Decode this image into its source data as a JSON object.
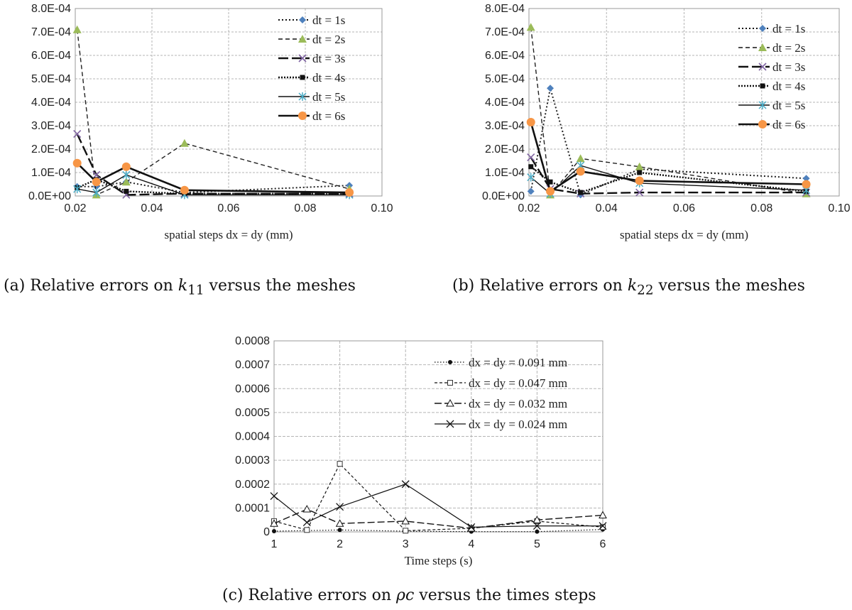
{
  "captions": {
    "a": {
      "prefix": "(a)  Relative errors on ",
      "symbol": "k",
      "sub": "11",
      "suffix": " versus the meshes"
    },
    "b": {
      "prefix": "(b)  Relative errors on ",
      "symbol": "k",
      "sub": "22",
      "suffix": " versus the meshes"
    },
    "c": {
      "prefix": "(c)  Relative errors on ",
      "symbol": "ρc",
      "sub": "",
      "suffix": " versus the times steps"
    }
  },
  "chart_data": [
    {
      "type": "line",
      "xlabel": "spatial steps dx = dy (mm)",
      "ylabel": "",
      "xlim": [
        0.02,
        0.1
      ],
      "ylim": [
        0,
        0.0008
      ],
      "x_ticks": [
        0.02,
        0.04,
        0.06,
        0.08,
        0.1
      ],
      "x_tick_labels": [
        "0.02",
        "0.04",
        "0.06",
        "0.08",
        "0.10"
      ],
      "y_ticks": [
        0,
        0.0001,
        0.0002,
        0.0003,
        0.0004,
        0.0005,
        0.0006,
        0.0007,
        0.0008
      ],
      "y_tick_labels": [
        "0.0E+00",
        "1.0E-04",
        "2.0E-04",
        "3.0E-04",
        "4.0E-04",
        "5.0E-04",
        "6.0E-04",
        "7.0E-04",
        "8.0E-04"
      ],
      "grid": true,
      "legend": "top-right",
      "x": [
        0.0205,
        0.0255,
        0.0333,
        0.0485,
        0.0915
      ],
      "series": [
        {
          "name": "dt = 1s",
          "values": [
            4e-05,
            4e-05,
            6e-05,
            1.5e-05,
            4.5e-05
          ],
          "color": "#4f81bd",
          "marker": "diamond",
          "dash": "2,3",
          "width": 2
        },
        {
          "name": "dt = 2s",
          "values": [
            0.00071,
            5e-06,
            6e-05,
            0.000225,
            3e-05
          ],
          "color": "#9bbb59",
          "marker": "triangle",
          "dash": "6,4",
          "width": 1.4
        },
        {
          "name": "dt = 3s",
          "values": [
            0.000265,
            9e-05,
            5e-06,
            1e-05,
            1e-05
          ],
          "color": "#8064a2",
          "marker": "cross",
          "dash": "14,5",
          "width": 2.4
        },
        {
          "name": "dt = 4s",
          "values": [
            3.5e-05,
            7e-05,
            2e-05,
            1e-05,
            1e-05
          ],
          "color": "#111111",
          "marker": "circle",
          "dash": "2,2",
          "width": 2.4
        },
        {
          "name": "dt = 5s",
          "values": [
            3e-05,
            1.5e-05,
            9e-05,
            5e-06,
            5e-06
          ],
          "color": "#4bacc6",
          "marker": "star",
          "dash": "",
          "width": 1.4
        },
        {
          "name": "dt = 6s",
          "values": [
            0.00014,
            6e-05,
            0.000125,
            2.5e-05,
            1.5e-05
          ],
          "color": "#f79646",
          "marker": "dot",
          "dash": "",
          "width": 2.6
        }
      ]
    },
    {
      "type": "line",
      "xlabel": "spatial steps dx = dy (mm)",
      "ylabel": "",
      "xlim": [
        0.02,
        0.1
      ],
      "ylim": [
        0,
        0.0008
      ],
      "x_ticks": [
        0.02,
        0.04,
        0.06,
        0.08,
        0.1
      ],
      "x_tick_labels": [
        "0.02",
        "0.04",
        "0.06",
        "0.08",
        "0.10"
      ],
      "y_ticks": [
        0,
        0.0001,
        0.0002,
        0.0003,
        0.0004,
        0.0005,
        0.0006,
        0.0007,
        0.0008
      ],
      "y_tick_labels": [
        "0.0E+00",
        "1.0E-04",
        "2.0E-04",
        "3.0E-04",
        "4.0E-04",
        "5.0E-04",
        "6.0E-04",
        "7.0E-04",
        "8.0E-04"
      ],
      "grid": true,
      "legend": "top-right",
      "x": [
        0.0205,
        0.0255,
        0.0333,
        0.0485,
        0.0915
      ],
      "series": [
        {
          "name": "dt = 1s",
          "values": [
            2e-05,
            0.00046,
            5e-06,
            0.000115,
            7.5e-05
          ],
          "color": "#4f81bd",
          "marker": "diamond",
          "dash": "2,3",
          "width": 2
        },
        {
          "name": "dt = 2s",
          "values": [
            0.00072,
            5e-06,
            0.00016,
            0.000125,
            1e-05
          ],
          "color": "#9bbb59",
          "marker": "triangle",
          "dash": "6,4",
          "width": 1.4
        },
        {
          "name": "dt = 3s",
          "values": [
            0.000165,
            3e-05,
            1e-05,
            1.5e-05,
            1.5e-05
          ],
          "color": "#8064a2",
          "marker": "cross",
          "dash": "14,5",
          "width": 2.4
        },
        {
          "name": "dt = 4s",
          "values": [
            0.000125,
            6e-05,
            1.5e-05,
            0.0001,
            2e-05
          ],
          "color": "#111111",
          "marker": "circle",
          "dash": "2,2",
          "width": 2.4
        },
        {
          "name": "dt = 5s",
          "values": [
            8e-05,
            1e-05,
            0.00013,
            5.5e-05,
            2.5e-05
          ],
          "color": "#4bacc6",
          "marker": "star",
          "dash": "",
          "width": 1.4
        },
        {
          "name": "dt = 6s",
          "values": [
            0.000315,
            2e-05,
            0.000105,
            6.5e-05,
            5e-05
          ],
          "color": "#f79646",
          "marker": "dot",
          "dash": "",
          "width": 2.6
        }
      ]
    },
    {
      "type": "line",
      "xlabel": "Time steps (s)",
      "ylabel": "",
      "xlim": [
        1,
        6
      ],
      "ylim": [
        0,
        0.0008
      ],
      "x_ticks": [
        1,
        2,
        3,
        4,
        5,
        6
      ],
      "x_tick_labels": [
        "1",
        "2",
        "3",
        "4",
        "5",
        "6"
      ],
      "y_ticks": [
        0,
        0.0001,
        0.0002,
        0.0003,
        0.0004,
        0.0005,
        0.0006,
        0.0007,
        0.0008
      ],
      "y_tick_labels": [
        "0",
        "0.0001",
        "0.0002",
        "0.0003",
        "0.0004",
        "0.0005",
        "0.0006",
        "0.0007",
        "0.0008"
      ],
      "grid": true,
      "legend": "top-right",
      "series": [
        {
          "name": "dx = dy = 0.091 mm",
          "x": [
            1,
            2,
            3,
            4,
            5,
            6
          ],
          "values": [
            3e-06,
            8e-06,
            3e-06,
            1e-06,
            1e-06,
            1e-05
          ],
          "color": "#111111",
          "marker": "dot-small",
          "dash": "1.5,2.5",
          "width": 1.2
        },
        {
          "name": "dx = dy = 0.047 mm",
          "x": [
            1,
            1.5,
            2,
            3,
            4,
            5,
            6
          ],
          "values": [
            4.5e-05,
            8e-06,
            0.000285,
            5e-06,
            1.5e-05,
            4.5e-05,
            2e-05
          ],
          "color": "#333333",
          "marker": "square-open",
          "dash": "4,3",
          "width": 1.2
        },
        {
          "name": "dx = dy = 0.032 mm",
          "x": [
            1,
            1.5,
            2,
            3,
            4,
            5,
            6
          ],
          "values": [
            3.5e-05,
            9.5e-05,
            3.5e-05,
            4.5e-05,
            1.5e-05,
            5e-05,
            7e-05
          ],
          "color": "#111111",
          "marker": "triangle-open",
          "dash": "10,4",
          "width": 1.4
        },
        {
          "name": "dx = dy = 0.024 mm",
          "x": [
            1,
            1.5,
            2,
            3,
            4,
            5,
            6
          ],
          "values": [
            0.00015,
            4e-05,
            0.000105,
            0.0002,
            2e-05,
            2.5e-05,
            2.5e-05
          ],
          "color": "#111111",
          "marker": "x",
          "dash": "",
          "width": 1.2
        }
      ]
    }
  ]
}
